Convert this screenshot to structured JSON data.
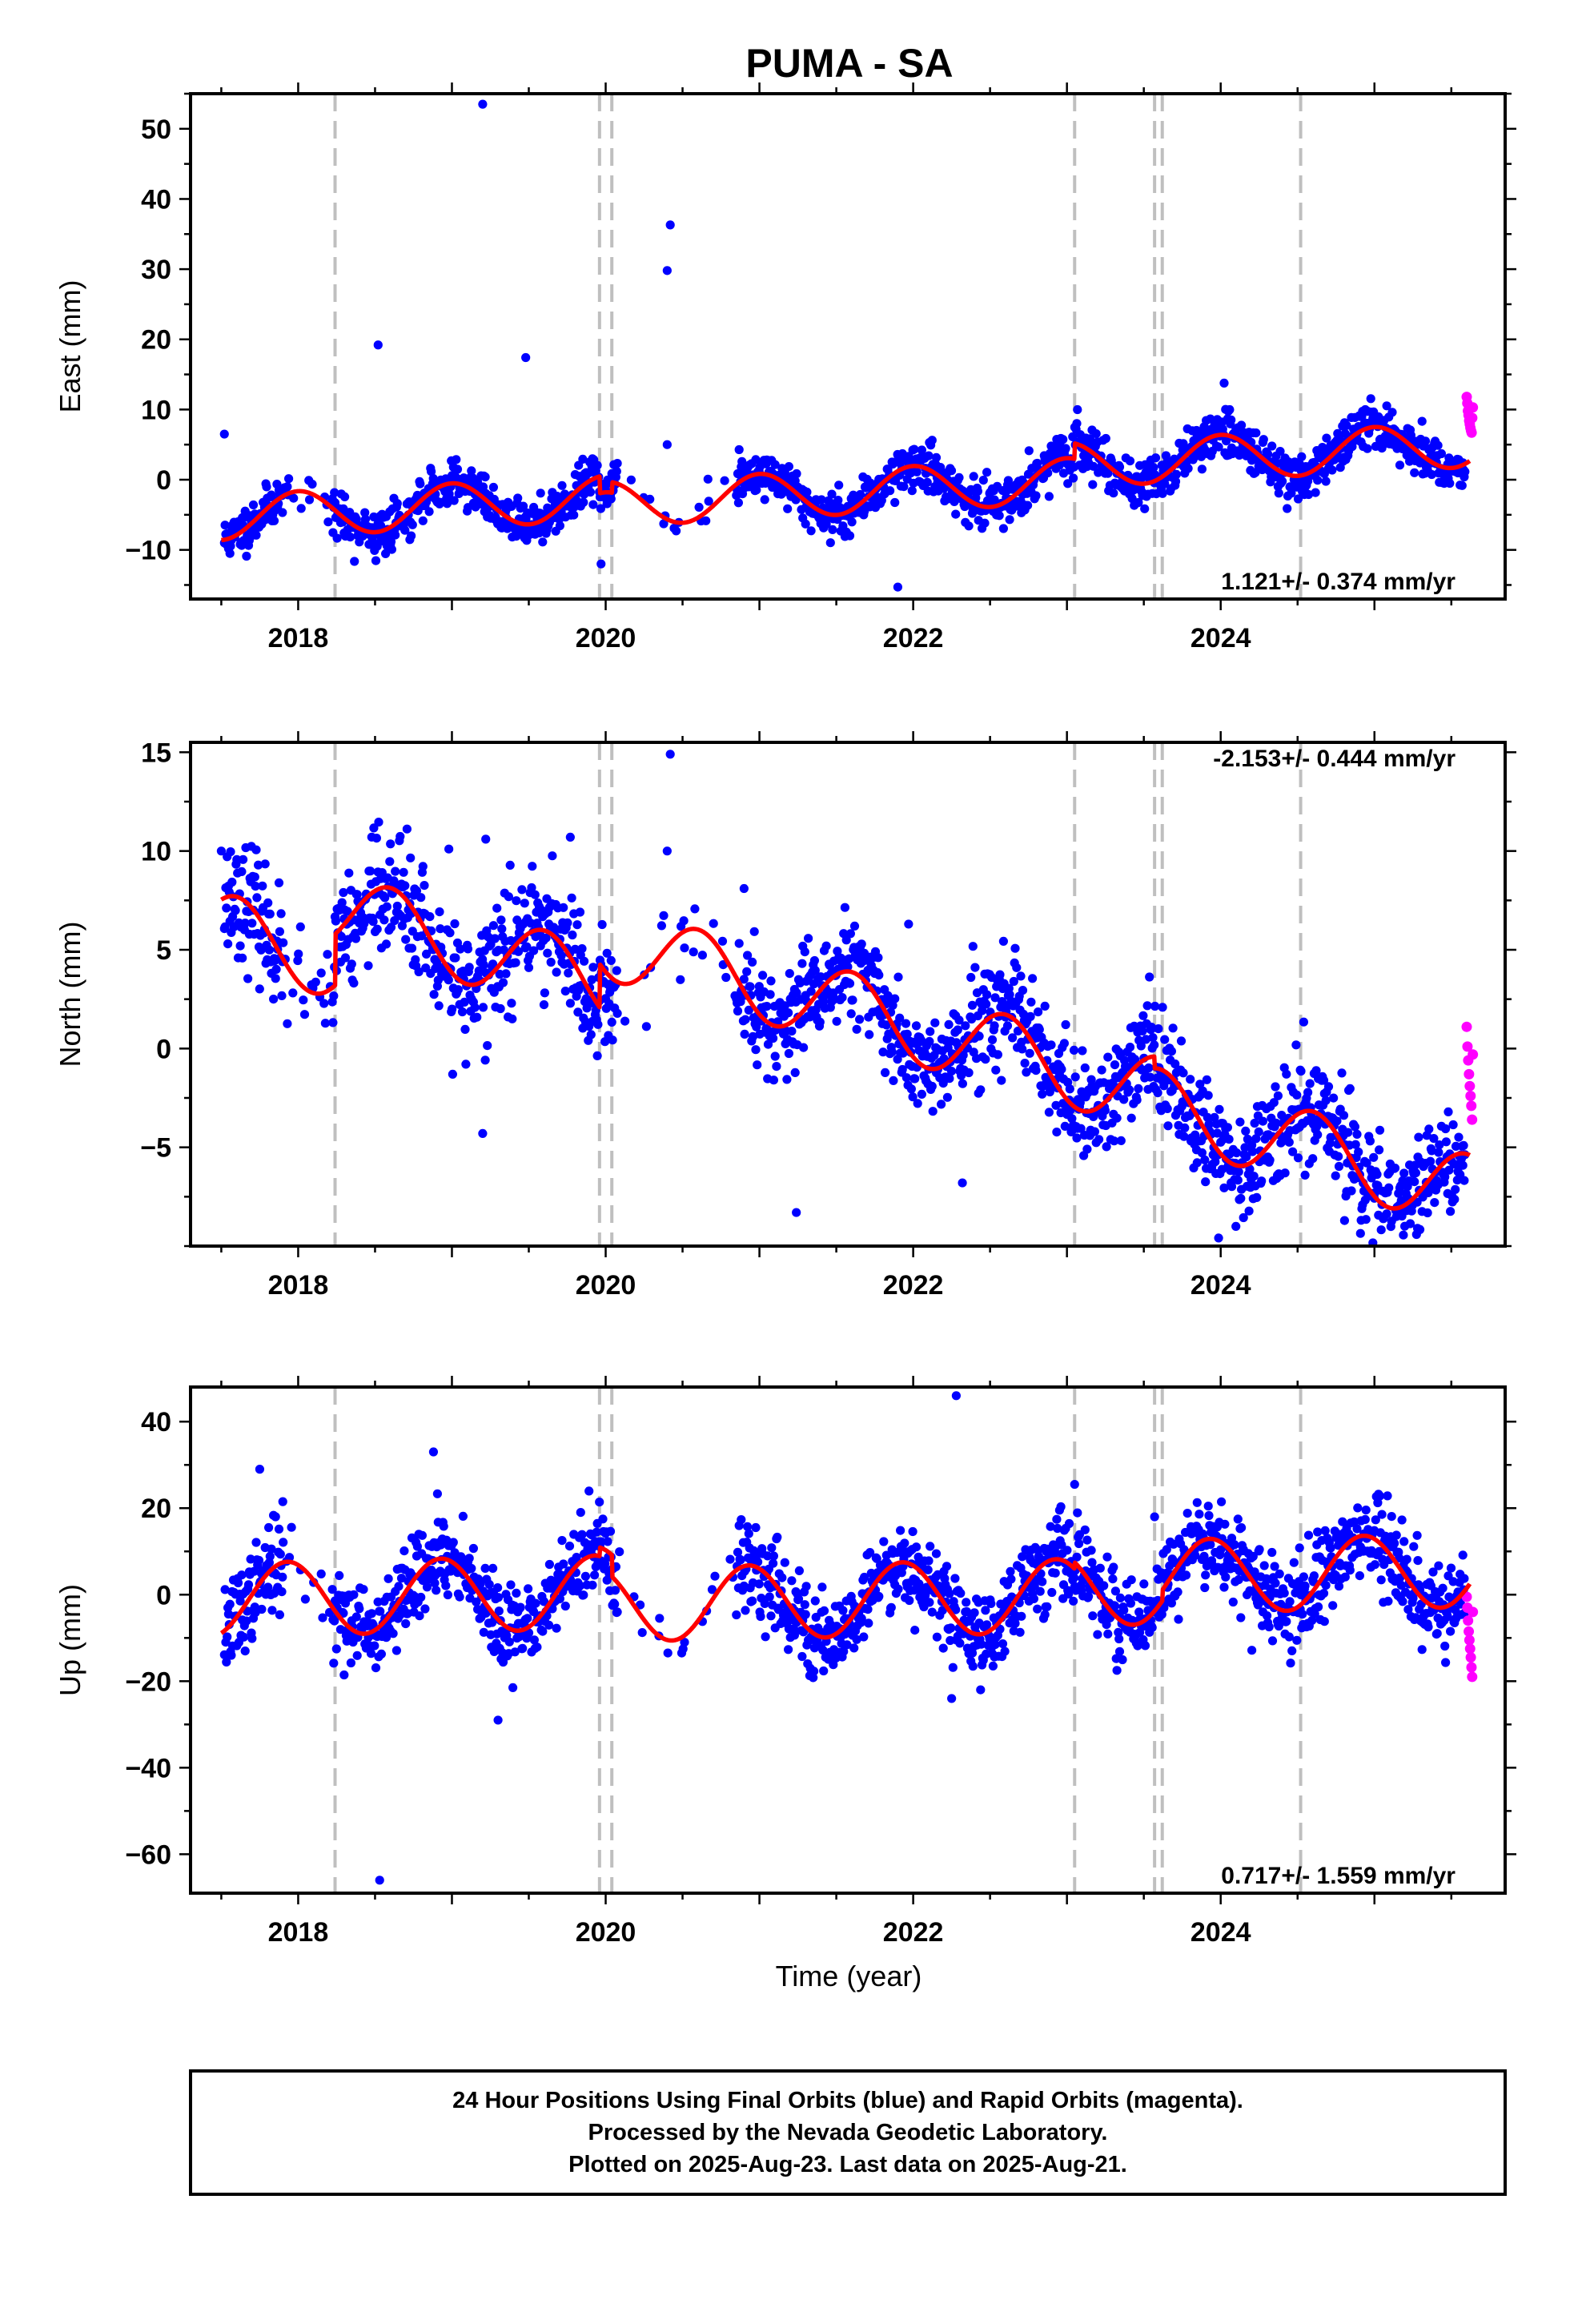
{
  "title": "PUMA - SA",
  "xlabel": "Time (year)",
  "footer": {
    "line1": "24 Hour Positions Using Final Orbits (blue) and Rapid Orbits (magenta).",
    "line2": "Processed by the Nevada Geodetic Laboratory.",
    "line3": "Plotted on 2025-Aug-23. Last data on 2025-Aug-21."
  },
  "colors": {
    "final_orbits": "#0000ff",
    "rapid_orbits": "#ff00ff",
    "model": "#ff0000",
    "event_lines": "#bfbfbf"
  },
  "chart_data": [
    {
      "type": "scatter",
      "component": "east",
      "ylabel": "East (mm)",
      "rate_label": "1.121+/- 0.374 mm/yr",
      "rate_position": "bottom-right",
      "xlim": [
        2017.3,
        2025.85
      ],
      "ylim": [
        -17,
        55
      ],
      "xticks": [
        2018,
        2020,
        2022,
        2024
      ],
      "yticks": [
        -10,
        0,
        10,
        20,
        30,
        40,
        50
      ],
      "event_lines": [
        2018.24,
        2019.96,
        2020.04,
        2023.05,
        2023.57,
        2023.62,
        2024.52
      ],
      "model": {
        "offset": -5.4,
        "rate": 1.121,
        "ref_year": 2017.5,
        "annual_amp": 3.2,
        "annual_phase_year": 2018.0,
        "breaks": [
          [
            2019.96,
            -2.4
          ],
          [
            2020.04,
            1.5
          ],
          [
            2023.05,
            2.2
          ]
        ]
      },
      "scatter": {
        "spread": 1.6,
        "seed": 11
      },
      "outliers": [
        [
          2017.52,
          6.5
        ],
        [
          2018.52,
          19.2
        ],
        [
          2019.2,
          53.5
        ],
        [
          2019.48,
          17.4
        ],
        [
          2020.42,
          36.3
        ],
        [
          2020.4,
          29.8
        ],
        [
          2020.4,
          5.0
        ],
        [
          2021.9,
          -15.3
        ],
        [
          2019.97,
          -12.0
        ]
      ],
      "rapid": {
        "start": 2025.6,
        "end": 2025.64,
        "values": [
          11.8,
          10.9,
          9.8,
          9.2,
          8.4,
          7.9,
          7.4,
          7.0,
          6.7,
          8.8,
          10.3
        ]
      }
    },
    {
      "type": "scatter",
      "component": "north",
      "ylabel": "North (mm)",
      "rate_label": "-2.153+/- 0.444 mm/yr",
      "rate_position": "top-right",
      "xlim": [
        2017.3,
        2025.85
      ],
      "ylim": [
        -10,
        15.5
      ],
      "xticks": [
        2018,
        2020,
        2022,
        2024
      ],
      "yticks": [
        -5,
        0,
        5,
        10,
        15
      ],
      "event_lines": [
        2018.24,
        2019.96,
        2020.04,
        2023.05,
        2023.57,
        2023.62,
        2024.52
      ],
      "model": {
        "offset": 6.0,
        "rate": -2.153,
        "ref_year": 2017.5,
        "annual_amp": 1.9,
        "annual_phase_year": 2018.6,
        "breaks": [
          [
            2018.24,
            2.6
          ],
          [
            2019.96,
            2.2
          ],
          [
            2023.57,
            -0.6
          ]
        ]
      },
      "scatter": {
        "spread": 1.4,
        "seed": 23
      },
      "outliers": [
        [
          2017.5,
          10.0
        ],
        [
          2018.98,
          10.1
        ],
        [
          2019.22,
          10.6
        ],
        [
          2019.2,
          -4.3
        ],
        [
          2019.77,
          10.7
        ],
        [
          2020.42,
          14.9
        ],
        [
          2020.4,
          10.0
        ],
        [
          2020.9,
          8.1
        ],
        [
          2021.24,
          -8.3
        ],
        [
          2021.97,
          6.3
        ],
        [
          2022.32,
          -6.8
        ],
        [
          2025.28,
          -9.1
        ]
      ],
      "rapid": {
        "start": 2025.6,
        "end": 2025.64,
        "values": [
          1.1,
          0.1,
          -0.6,
          -1.3,
          -1.9,
          -2.4,
          -2.9,
          -3.6,
          -0.3
        ]
      }
    },
    {
      "type": "scatter",
      "component": "up",
      "ylabel": "Up (mm)",
      "rate_label": "0.717+/- 1.559 mm/yr",
      "rate_position": "bottom-right",
      "xlim": [
        2017.3,
        2025.85
      ],
      "ylim": [
        -69,
        48
      ],
      "xticks": [
        2018,
        2020,
        2022,
        2024
      ],
      "yticks": [
        -60,
        -40,
        -20,
        0,
        20,
        40
      ],
      "event_lines": [
        2018.24,
        2019.96,
        2020.04,
        2023.05,
        2023.57,
        2023.62,
        2024.52
      ],
      "model": {
        "offset": -1.2,
        "rate": 0.717,
        "ref_year": 2017.5,
        "annual_amp": 8.5,
        "annual_phase_year": 2017.93,
        "breaks": [
          [
            2019.96,
            2.0
          ],
          [
            2020.04,
            -5.0
          ],
          [
            2023.05,
            1.5
          ],
          [
            2023.62,
            2.5
          ]
        ]
      },
      "scatter": {
        "spread": 5.0,
        "seed": 37
      },
      "outliers": [
        [
          2017.75,
          29.0
        ],
        [
          2017.9,
          21.5
        ],
        [
          2018.53,
          -66.0
        ],
        [
          2018.88,
          33.0
        ],
        [
          2019.3,
          -29.0
        ],
        [
          2022.28,
          46.0
        ],
        [
          2022.25,
          -24.0
        ],
        [
          2023.05,
          25.5
        ],
        [
          2023.57,
          18.0
        ]
      ],
      "rapid": {
        "start": 2025.6,
        "end": 2025.64,
        "values": [
          -0.5,
          -3.0,
          -6.0,
          -8.5,
          -10.5,
          -12.5,
          -14.5,
          -16.8,
          -19.0,
          -4.0
        ]
      }
    }
  ]
}
